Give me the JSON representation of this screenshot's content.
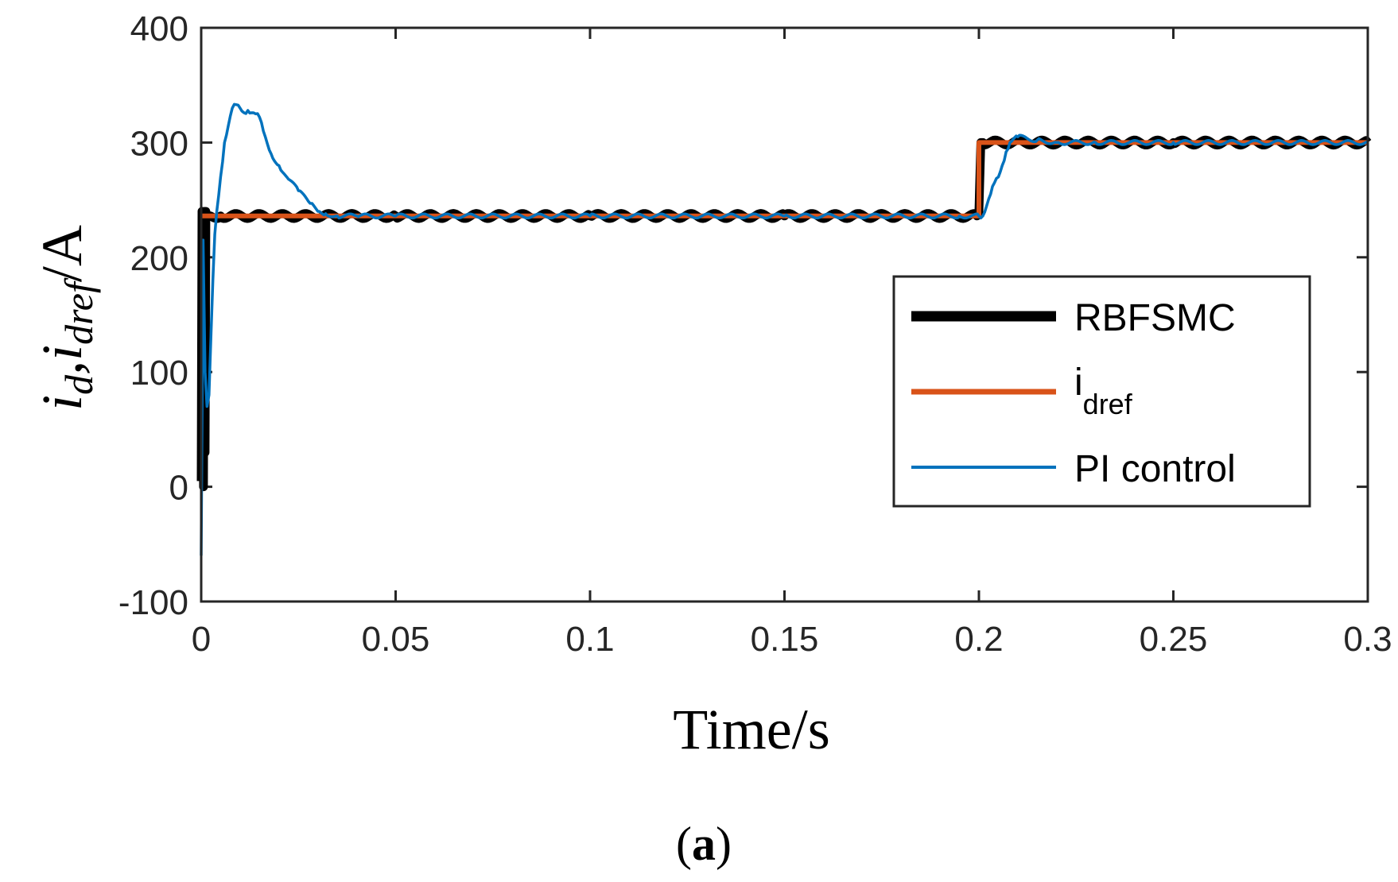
{
  "chart_data": {
    "type": "line",
    "caption": {
      "open": "(",
      "letter": "a",
      "close": ")"
    },
    "xlabel": "Time/s",
    "ylabel": {
      "main": "i",
      "sub1": "d",
      "sep": ",",
      "main2": "i",
      "sub2": "dref",
      "unit": "/A"
    },
    "xlim": [
      0,
      0.3
    ],
    "ylim": [
      -100,
      400
    ],
    "xticks": [
      0,
      0.05,
      0.1,
      0.15,
      0.2,
      0.25,
      0.3
    ],
    "xtick_labels": [
      "0",
      "0.05",
      "0.1",
      "0.15",
      "0.2",
      "0.25",
      "0.3"
    ],
    "yticks": [
      -100,
      0,
      100,
      200,
      300,
      400
    ],
    "ytick_labels": [
      "-100",
      "0",
      "100",
      "200",
      "300",
      "400"
    ],
    "legend": {
      "position": "center-right"
    },
    "series": [
      {
        "name": "RBFSMC",
        "color": "#000000",
        "style": "thick",
        "x": [
          0,
          0.0002,
          0.0003,
          0.0004,
          0.0006,
          0.0008,
          0.001,
          0.0012,
          0.0015,
          0.002,
          0.005,
          0.05,
          0.1,
          0.15,
          0.1995,
          0.2,
          0.2005,
          0.201,
          0.25,
          0.3
        ],
        "values": [
          5,
          240,
          10,
          235,
          0,
          240,
          30,
          240,
          235,
          236,
          236,
          236,
          236,
          236,
          236,
          240,
          300,
          300,
          300,
          300
        ]
      },
      {
        "name": "i_dref",
        "legend_main": "i",
        "legend_sub": "dref",
        "color": "#D95319",
        "style": "medium",
        "x": [
          0,
          0.2,
          0.2,
          0.3
        ],
        "values": [
          236,
          236,
          300,
          300
        ]
      },
      {
        "name": "PI control",
        "color": "#0072BD",
        "style": "thin",
        "x": [
          0,
          0.0005,
          0.001,
          0.0015,
          0.002,
          0.0025,
          0.003,
          0.0035,
          0.004,
          0.005,
          0.006,
          0.007,
          0.008,
          0.009,
          0.01,
          0.011,
          0.012,
          0.013,
          0.014,
          0.015,
          0.016,
          0.018,
          0.02,
          0.022,
          0.025,
          0.028,
          0.03,
          0.032,
          0.035,
          0.04,
          0.05,
          0.1,
          0.15,
          0.195,
          0.2,
          0.201,
          0.202,
          0.203,
          0.204,
          0.205,
          0.206,
          0.207,
          0.208,
          0.21,
          0.215,
          0.22,
          0.23,
          0.25,
          0.3
        ],
        "values": [
          -60,
          215,
          100,
          70,
          80,
          130,
          180,
          220,
          240,
          270,
          300,
          315,
          330,
          333,
          330,
          326,
          328,
          326,
          325,
          322,
          310,
          290,
          280,
          270,
          258,
          247,
          240,
          238,
          236,
          236,
          236,
          236,
          236,
          236,
          236,
          236,
          245,
          255,
          265,
          270,
          280,
          292,
          300,
          305,
          302,
          300,
          300,
          300,
          300
        ]
      }
    ]
  }
}
